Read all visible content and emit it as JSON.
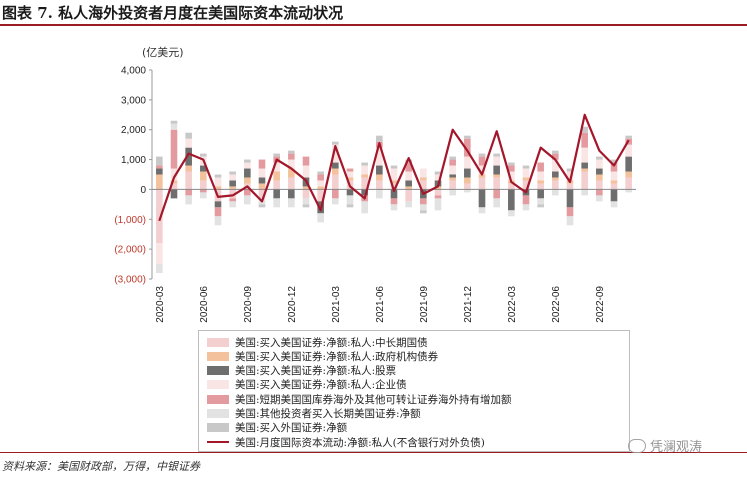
{
  "title": "图表 7. 私人海外投资者月度在美国际资本流动状况",
  "unit_label": "(亿美元)",
  "source": "资料来源：美国财政部，万得，中银证券",
  "watermark": "凭澜观涛",
  "chart_data": {
    "type": "bar",
    "stacked": true,
    "ylim": [
      -3000,
      4000
    ],
    "yticks": [
      4000,
      3000,
      2000,
      1000,
      0,
      -1000,
      -2000,
      -3000
    ],
    "ytick_labels": [
      "4,000",
      "3,000",
      "2,000",
      "1,000",
      "0",
      "(1,000)",
      "(2,000)",
      "(3,000)"
    ],
    "xtick_labels": [
      "2020-03",
      "2020-06",
      "2020-09",
      "2020-12",
      "2021-03",
      "2021-06",
      "2021-09",
      "2021-12",
      "2022-03",
      "2022-06",
      "2022-09"
    ],
    "xtick_index": [
      0,
      3,
      6,
      9,
      12,
      15,
      18,
      21,
      24,
      27,
      30
    ],
    "categories": [
      "2020-03",
      "2020-04",
      "2020-05",
      "2020-06",
      "2020-07",
      "2020-08",
      "2020-09",
      "2020-10",
      "2020-11",
      "2020-12",
      "2021-01",
      "2021-02",
      "2021-03",
      "2021-04",
      "2021-05",
      "2021-06",
      "2021-07",
      "2021-08",
      "2021-09",
      "2021-10",
      "2021-11",
      "2021-12",
      "2022-01",
      "2022-02",
      "2022-03",
      "2022-04",
      "2022-05",
      "2022-06",
      "2022-07",
      "2022-08",
      "2022-09",
      "2022-10",
      "2022-11"
    ],
    "series": [
      {
        "name": "美国:买入美国证券:净额:私人:中长期国债",
        "color": "#f4cfd0",
        "values": [
          -1800,
          200,
          600,
          300,
          -400,
          -300,
          200,
          -300,
          300,
          400,
          -300,
          -400,
          500,
          300,
          400,
          300,
          200,
          -400,
          300,
          -200,
          300,
          200,
          400,
          400,
          200,
          300,
          200,
          300,
          200,
          600,
          300,
          200,
          400
        ]
      },
      {
        "name": "美国:买入美国证券:净额:私人:政府机构债券",
        "color": "#f3c29c",
        "values": [
          500,
          100,
          200,
          300,
          100,
          100,
          200,
          200,
          300,
          300,
          100,
          100,
          200,
          100,
          100,
          200,
          100,
          100,
          100,
          100,
          100,
          200,
          100,
          100,
          100,
          100,
          100,
          100,
          100,
          100,
          200,
          100,
          200
        ]
      },
      {
        "name": "美国:买入美国证券:净额:私人:股票",
        "color": "#6e6e6e",
        "values": [
          200,
          -300,
          600,
          200,
          -200,
          200,
          300,
          200,
          -300,
          -300,
          300,
          -400,
          200,
          -200,
          -200,
          300,
          -300,
          200,
          -300,
          200,
          100,
          300,
          -600,
          300,
          -700,
          -200,
          -300,
          200,
          -600,
          200,
          200,
          -400,
          500
        ]
      },
      {
        "name": "美国:买入美国证券:净额:私人:企业债",
        "color": "#fae5e5",
        "values": [
          -700,
          400,
          300,
          300,
          300,
          200,
          200,
          300,
          300,
          300,
          400,
          200,
          600,
          200,
          300,
          600,
          400,
          300,
          300,
          200,
          300,
          400,
          300,
          300,
          300,
          300,
          300,
          400,
          300,
          500,
          300,
          300,
          400
        ]
      },
      {
        "name": "美国:短期美国国库券海外及其他可转让证券海外持有增加额",
        "color": "#e49ba0",
        "values": [
          100,
          1300,
          -200,
          -100,
          -300,
          -100,
          -200,
          300,
          200,
          200,
          300,
          200,
          -300,
          100,
          -200,
          200,
          -200,
          300,
          -200,
          -100,
          200,
          600,
          300,
          -300,
          200,
          -300,
          300,
          200,
          -300,
          500,
          -200,
          300,
          200
        ]
      },
      {
        "name": "美国:其他投资者买入长期美国证券:净额",
        "color": "#e2e2e2",
        "values": [
          -300,
          200,
          -300,
          -200,
          -300,
          -200,
          -300,
          -200,
          -300,
          -300,
          -200,
          -300,
          -200,
          -300,
          -400,
          -300,
          -200,
          -200,
          -200,
          -400,
          -200,
          -100,
          -200,
          -300,
          -200,
          -200,
          -200,
          -200,
          -300,
          -200,
          -200,
          -200,
          -100
        ]
      },
      {
        "name": "美国:买入外国证券:净额",
        "color": "#c8c8c8",
        "values": [
          300,
          100,
          200,
          100,
          100,
          100,
          100,
          -100,
          100,
          100,
          -100,
          100,
          100,
          -100,
          100,
          200,
          100,
          100,
          -100,
          100,
          100,
          100,
          100,
          100,
          100,
          100,
          -100,
          100,
          100,
          200,
          100,
          100,
          100
        ]
      },
      {
        "name": "美国:月度国际资本流动:净额:私人(不含银行对外负债)",
        "color": "#a3172b",
        "kind": "line",
        "values": [
          -1050,
          400,
          1200,
          1000,
          -250,
          -200,
          100,
          -400,
          1000,
          700,
          300,
          -700,
          1450,
          100,
          -300,
          1550,
          -50,
          1050,
          -150,
          100,
          2000,
          1300,
          500,
          1950,
          250,
          -100,
          1400,
          1000,
          250,
          2500,
          1300,
          800,
          1650
        ]
      }
    ]
  }
}
